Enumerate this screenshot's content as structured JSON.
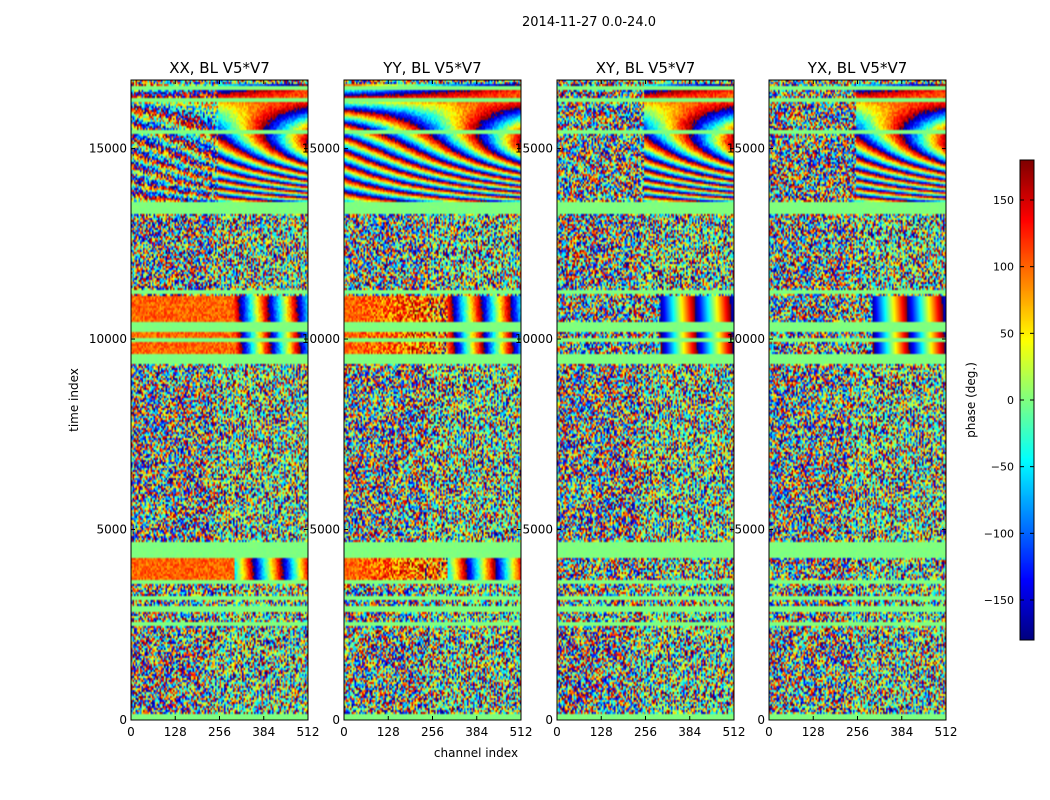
{
  "figure_title": "2014-11-27 0.0-24.0",
  "chart_data": {
    "type": "heatmap",
    "title": "2014-11-27 0.0-24.0",
    "shared_xlabel": "channel index",
    "shared_ylabel": "time index",
    "xlim": [
      0,
      512
    ],
    "ylim": [
      0,
      16800
    ],
    "x_ticks": [
      0,
      128,
      256,
      384,
      512
    ],
    "y_ticks": [
      0,
      5000,
      10000,
      15000
    ],
    "colormap": "jet",
    "panels": [
      {
        "title": "XX, BL V5*V7",
        "pol": "XX"
      },
      {
        "title": "YY, BL V5*V7",
        "pol": "YY"
      },
      {
        "title": "XY, BL V5*V7",
        "pol": "XY"
      },
      {
        "title": "YX, BL V5*V7",
        "pol": "YX"
      }
    ],
    "colorbar": {
      "label": "phase (deg.)",
      "vmin": -180,
      "vmax": 180,
      "ticks": [
        -150,
        -100,
        -50,
        0,
        50,
        100,
        150
      ]
    },
    "flagged_time_ranges": [
      [
        0,
        150
      ],
      [
        2450,
        2560
      ],
      [
        2820,
        3000
      ],
      [
        3150,
        3250
      ],
      [
        3550,
        3700
      ],
      [
        4250,
        4650
      ],
      [
        9350,
        9600
      ],
      [
        9900,
        10050
      ],
      [
        10200,
        10450
      ],
      [
        11180,
        11280
      ],
      [
        13300,
        13580
      ],
      [
        15400,
        15500
      ],
      [
        16200,
        16350
      ],
      [
        16550,
        16650
      ]
    ]
  }
}
